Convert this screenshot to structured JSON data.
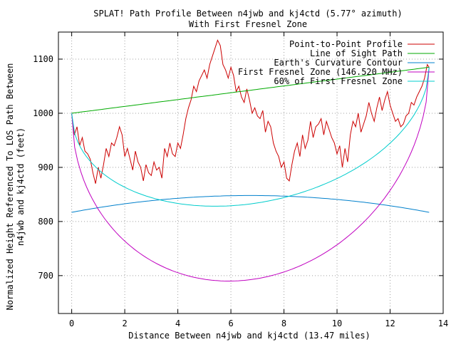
{
  "chart_data": {
    "type": "line",
    "title": "SPLAT! Path Profile Between n4jwb and kj4ctd (5.77° azimuth)",
    "subtitle": "With First Fresnel Zone",
    "xlabel": "Distance Between n4jwb and kj4ctd (13.47 miles)",
    "ylabel_line1": "Normalized Height Referenced To LOS Path Between",
    "ylabel_line2": "n4jwb and kj4ctd (feet)",
    "xlim": [
      -0.5,
      14
    ],
    "ylim": [
      630,
      1150
    ],
    "xticks": [
      0,
      2,
      4,
      6,
      8,
      10,
      12,
      14
    ],
    "xtick_labels": [
      "0",
      "2",
      "4",
      "6",
      "8",
      "10",
      "12",
      "14"
    ],
    "yticks": [
      700,
      800,
      900,
      1000,
      1100
    ],
    "ytick_labels": [
      "700",
      "800",
      "900",
      "1000",
      "1100"
    ],
    "grid": true,
    "legend_position": "top-right",
    "path_length": 13.47,
    "series": [
      {
        "name": "Point-to-Point Profile",
        "color": "#cc0000",
        "x": [
          0,
          0.1,
          0.2,
          0.3,
          0.4,
          0.5,
          0.6,
          0.7,
          0.8,
          0.9,
          1.0,
          1.1,
          1.2,
          1.3,
          1.4,
          1.5,
          1.6,
          1.7,
          1.8,
          1.9,
          2.0,
          2.1,
          2.2,
          2.3,
          2.4,
          2.5,
          2.6,
          2.7,
          2.8,
          2.9,
          3.0,
          3.1,
          3.2,
          3.3,
          3.4,
          3.5,
          3.6,
          3.7,
          3.8,
          3.9,
          4.0,
          4.1,
          4.2,
          4.3,
          4.4,
          4.5,
          4.6,
          4.7,
          4.8,
          4.9,
          5.0,
          5.1,
          5.2,
          5.3,
          5.4,
          5.5,
          5.6,
          5.7,
          5.8,
          5.9,
          6.0,
          6.1,
          6.2,
          6.3,
          6.4,
          6.5,
          6.6,
          6.7,
          6.8,
          6.9,
          7.0,
          7.1,
          7.2,
          7.3,
          7.4,
          7.5,
          7.6,
          7.7,
          7.8,
          7.9,
          8.0,
          8.1,
          8.2,
          8.3,
          8.4,
          8.5,
          8.6,
          8.7,
          8.8,
          8.9,
          9.0,
          9.1,
          9.2,
          9.3,
          9.4,
          9.5,
          9.6,
          9.7,
          9.8,
          9.9,
          10.0,
          10.1,
          10.2,
          10.3,
          10.4,
          10.5,
          10.6,
          10.7,
          10.8,
          10.9,
          11.0,
          11.1,
          11.2,
          11.3,
          11.4,
          11.5,
          11.6,
          11.7,
          11.8,
          11.9,
          12.0,
          12.1,
          12.2,
          12.3,
          12.4,
          12.5,
          12.6,
          12.7,
          12.8,
          12.9,
          13.0,
          13.1,
          13.2,
          13.3,
          13.4,
          13.47
        ],
        "y": [
          1000,
          960,
          975,
          940,
          955,
          930,
          925,
          915,
          890,
          870,
          900,
          880,
          905,
          935,
          920,
          945,
          940,
          955,
          975,
          960,
          920,
          935,
          915,
          895,
          930,
          910,
          900,
          875,
          905,
          890,
          885,
          910,
          895,
          900,
          880,
          935,
          920,
          945,
          925,
          920,
          945,
          935,
          960,
          990,
          1010,
          1025,
          1050,
          1040,
          1060,
          1070,
          1080,
          1065,
          1090,
          1105,
          1120,
          1135,
          1125,
          1090,
          1080,
          1065,
          1085,
          1070,
          1040,
          1050,
          1030,
          1020,
          1045,
          1025,
          1000,
          1010,
          995,
          990,
          1005,
          965,
          985,
          975,
          945,
          930,
          920,
          900,
          910,
          880,
          875,
          905,
          930,
          945,
          920,
          960,
          935,
          950,
          985,
          955,
          975,
          980,
          990,
          960,
          985,
          970,
          955,
          945,
          925,
          940,
          900,
          935,
          910,
          960,
          985,
          975,
          1000,
          965,
          980,
          995,
          1020,
          1000,
          985,
          1010,
          1030,
          1005,
          1025,
          1040,
          1015,
          1000,
          985,
          990,
          975,
          980,
          995,
          1000,
          1020,
          1015,
          1030,
          1040,
          1050,
          1065,
          1090,
          1085
        ]
      },
      {
        "name": "Line of Sight Path",
        "color": "#00aa00",
        "formula": "los"
      },
      {
        "name": "Earth's Curvature Contour",
        "color": "#0080cc",
        "formula": "earth"
      },
      {
        "name": "First Fresnel Zone (146.520 MHz)",
        "color": "#c000c0",
        "formula": "fresnel_full"
      },
      {
        "name": "60% of First Fresnel Zone",
        "color": "#00cccc",
        "formula": "fresnel_60"
      }
    ],
    "los_endpoints": [
      1000,
      1085
    ],
    "earth_bulge": {
      "base": 817,
      "peak": 848
    },
    "fresnel_radius_mid": 350
  }
}
